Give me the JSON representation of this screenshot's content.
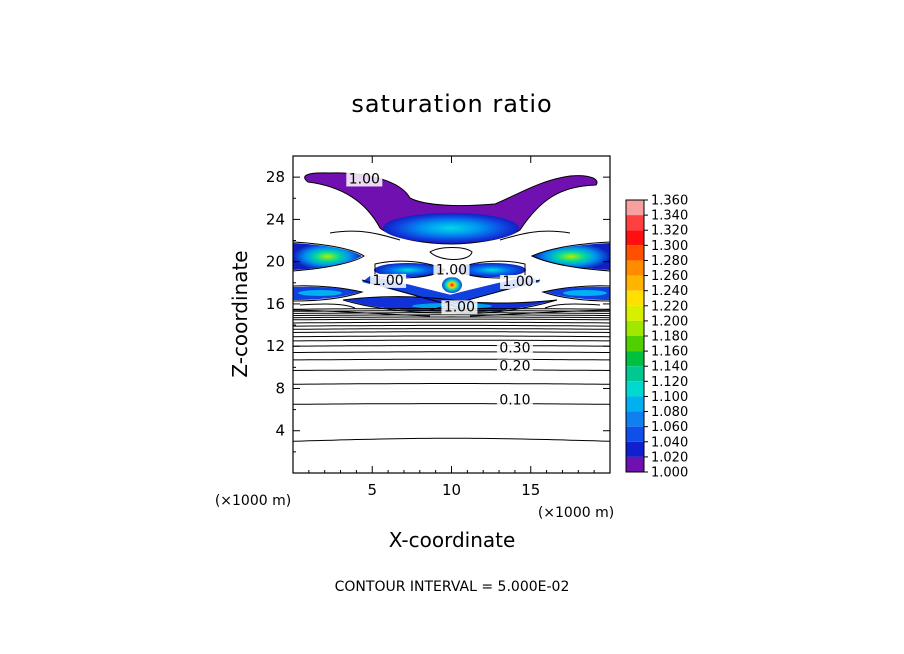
{
  "chart_data": {
    "type": "contour",
    "title": "saturation ratio",
    "xlabel": "X-coordinate",
    "ylabel": "Z-coordinate",
    "x_unit": "(×1000 m)",
    "y_unit": "(×1000 m)",
    "xlim": [
      0,
      20
    ],
    "ylim": [
      0,
      30
    ],
    "x_ticks": [
      "5",
      "10",
      "15"
    ],
    "x_tick_values": [
      5,
      10,
      15
    ],
    "y_ticks": [
      "4",
      "8",
      "12",
      "16",
      "20",
      "24",
      "28"
    ],
    "y_tick_values": [
      4,
      8,
      12,
      16,
      20,
      24,
      28
    ],
    "contour_interval_text": "CONTOUR INTERVAL = 5.000E-02",
    "contour_labels": [
      {
        "text": "1.00",
        "x": 4.5,
        "z": 27.4
      },
      {
        "text": "1.00",
        "x": 6.0,
        "z": 17.8
      },
      {
        "text": "1.00",
        "x": 10.0,
        "z": 18.8
      },
      {
        "text": "1.00",
        "x": 14.2,
        "z": 17.7
      },
      {
        "text": "1.00",
        "x": 10.5,
        "z": 15.3
      },
      {
        "text": "0.30",
        "x": 14.0,
        "z": 11.4
      },
      {
        "text": "0.20",
        "x": 14.0,
        "z": 9.7
      },
      {
        "text": "0.10",
        "x": 14.0,
        "z": 6.5
      }
    ],
    "low_contour_levels": [
      {
        "value": 0.05,
        "z": 3.0
      },
      {
        "value": 0.1,
        "z": 6.5
      },
      {
        "value": 0.15,
        "z": 8.4
      },
      {
        "value": 0.2,
        "z": 9.7
      },
      {
        "value": 0.25,
        "z": 10.7
      },
      {
        "value": 0.3,
        "z": 11.4
      },
      {
        "value": 0.35,
        "z": 12.0
      },
      {
        "value": 0.4,
        "z": 12.5
      },
      {
        "value": 0.45,
        "z": 12.9
      },
      {
        "value": 0.5,
        "z": 13.3
      },
      {
        "value": 0.55,
        "z": 13.6
      },
      {
        "value": 0.6,
        "z": 13.9
      },
      {
        "value": 0.65,
        "z": 14.2
      },
      {
        "value": 0.7,
        "z": 14.5
      },
      {
        "value": 0.75,
        "z": 14.7
      },
      {
        "value": 0.8,
        "z": 14.9
      },
      {
        "value": 0.85,
        "z": 15.1
      },
      {
        "value": 0.9,
        "z": 15.3
      },
      {
        "value": 0.95,
        "z": 15.5
      }
    ],
    "colorbar": {
      "min": 1.0,
      "max": 1.36,
      "labels": [
        "1.360",
        "1.340",
        "1.320",
        "1.300",
        "1.280",
        "1.260",
        "1.240",
        "1.220",
        "1.200",
        "1.180",
        "1.160",
        "1.140",
        "1.120",
        "1.100",
        "1.080",
        "1.060",
        "1.040",
        "1.020",
        "1.000"
      ],
      "colors": [
        "#f8a0a0",
        "#ff4040",
        "#ff1010",
        "#ff5000",
        "#ff8c00",
        "#ffb400",
        "#ffe000",
        "#d8f000",
        "#a0e800",
        "#50d000",
        "#00c040",
        "#00c890",
        "#00d8d0",
        "#00b0f0",
        "#1080f0",
        "#1050e8",
        "#1020d0",
        "#3010a0",
        "#7010b0"
      ]
    }
  }
}
